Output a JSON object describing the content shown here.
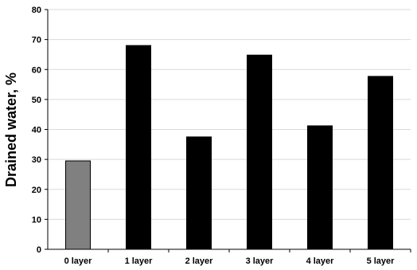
{
  "chart_data": {
    "type": "bar",
    "categories": [
      "0 layer",
      "1 layer",
      "2 layer",
      "3 layer",
      "4 layer",
      "5 layer"
    ],
    "values": [
      29.5,
      68,
      37.5,
      64.8,
      41.2,
      57.7
    ],
    "title": "",
    "xlabel": "",
    "ylabel": "Drained water, %",
    "ylim": [
      0,
      80
    ],
    "yticks": [
      0,
      10,
      20,
      30,
      40,
      50,
      60,
      70,
      80
    ],
    "grid": true,
    "bar_colors": [
      "#808080",
      "#000000",
      "#000000",
      "#000000",
      "#000000",
      "#000000"
    ]
  }
}
